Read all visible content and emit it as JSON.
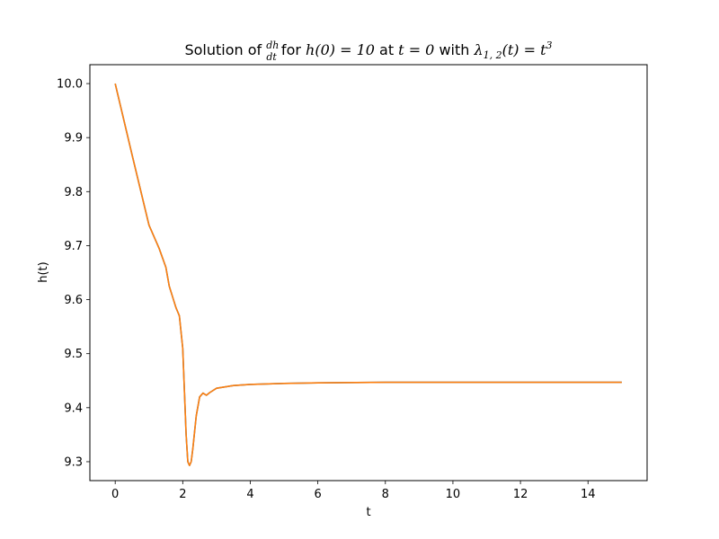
{
  "chart_data": {
    "type": "line",
    "title": {
      "prefix": "Solution of ",
      "frac_num": "dh",
      "frac_den": "dt",
      "mid1": " for ",
      "cond": "h(0) = 10",
      "mid2": " at ",
      "t0": "t = 0",
      "mid3": " with ",
      "lam": "λ",
      "lam_sub": "1, 2",
      "lam_rest": "(t) = t",
      "lam_sup": "3"
    },
    "xlabel": "t",
    "ylabel": "h(t)",
    "xlim": [
      -0.75,
      15.75
    ],
    "ylim": [
      9.265,
      10.035
    ],
    "xticks": [
      0,
      2,
      4,
      6,
      8,
      10,
      12,
      14
    ],
    "yticks": [
      9.3,
      9.4,
      9.5,
      9.6,
      9.7,
      9.8,
      9.9,
      10.0
    ],
    "ytick_labels": [
      "9.3",
      "9.4",
      "9.5",
      "9.6",
      "9.7",
      "9.8",
      "9.9",
      "10.0"
    ],
    "grid": false,
    "series": [
      {
        "color": "#1f77b4",
        "x": [
          0,
          0.5,
          1.0,
          1.3,
          1.5,
          1.6,
          1.7,
          1.8,
          1.9,
          2.0,
          2.05,
          2.1,
          2.15,
          2.2,
          2.25,
          2.3,
          2.35,
          2.4,
          2.5,
          2.6,
          2.65,
          2.7,
          2.8,
          3.0,
          3.5,
          4.0,
          5.0,
          6.0,
          8.0,
          10.0,
          12.0,
          15.0
        ],
        "y": [
          10.0,
          9.868,
          9.738,
          9.695,
          9.66,
          9.625,
          9.605,
          9.585,
          9.57,
          9.51,
          9.43,
          9.35,
          9.3,
          9.293,
          9.3,
          9.325,
          9.355,
          9.385,
          9.42,
          9.427,
          9.425,
          9.423,
          9.428,
          9.436,
          9.441,
          9.443,
          9.445,
          9.446,
          9.447,
          9.447,
          9.447,
          9.447
        ]
      },
      {
        "color": "#ff7f0e",
        "x": [
          0,
          0.5,
          1.0,
          1.3,
          1.5,
          1.6,
          1.7,
          1.8,
          1.9,
          2.0,
          2.05,
          2.1,
          2.15,
          2.2,
          2.25,
          2.3,
          2.35,
          2.4,
          2.5,
          2.6,
          2.65,
          2.7,
          2.8,
          3.0,
          3.5,
          4.0,
          5.0,
          6.0,
          8.0,
          10.0,
          12.0,
          15.0
        ],
        "y": [
          10.0,
          9.868,
          9.738,
          9.695,
          9.66,
          9.625,
          9.605,
          9.585,
          9.57,
          9.51,
          9.43,
          9.35,
          9.3,
          9.293,
          9.3,
          9.325,
          9.355,
          9.385,
          9.42,
          9.427,
          9.425,
          9.423,
          9.428,
          9.436,
          9.441,
          9.443,
          9.445,
          9.446,
          9.447,
          9.447,
          9.447,
          9.447
        ]
      }
    ]
  }
}
